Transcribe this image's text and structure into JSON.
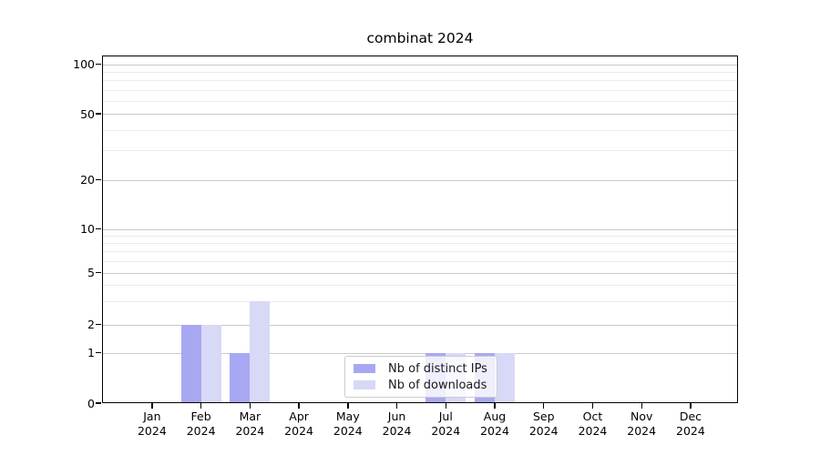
{
  "chart_data": {
    "type": "bar",
    "title": "combinat 2024",
    "categories": [
      "Jan 2024",
      "Feb 2024",
      "Mar 2024",
      "Apr 2024",
      "May 2024",
      "Jun 2024",
      "Jul 2024",
      "Aug 2024",
      "Sep 2024",
      "Oct 2024",
      "Nov 2024",
      "Dec 2024"
    ],
    "series": [
      {
        "name": "Nb of distinct IPs",
        "color": "#a8a8f2",
        "values": [
          0,
          2,
          1,
          0,
          0,
          0,
          1,
          1,
          0,
          0,
          0,
          0
        ]
      },
      {
        "name": "Nb of downloads",
        "color": "#d8d8f7",
        "values": [
          0,
          2,
          3,
          0,
          0,
          0,
          1,
          1,
          0,
          0,
          0,
          0
        ]
      }
    ],
    "xlabel": "",
    "ylabel": "",
    "y_axis": {
      "scale": "log above 1, linear 0-1",
      "major_ticks": [
        0,
        1,
        2,
        5,
        10,
        20,
        50,
        100
      ],
      "minor_gridlines": [
        3,
        4,
        6,
        7,
        8,
        9,
        30,
        40,
        60,
        70,
        80,
        90
      ],
      "ylim": [
        0,
        115
      ]
    },
    "grid": true,
    "legend": {
      "position": "lower center",
      "items": [
        "Nb of distinct IPs",
        "Nb of downloads"
      ]
    },
    "colors": {
      "major_grid": "#c9c9c9",
      "minor_grid": "#ebebeb",
      "axis": "#000000",
      "background": "#ffffff"
    }
  }
}
